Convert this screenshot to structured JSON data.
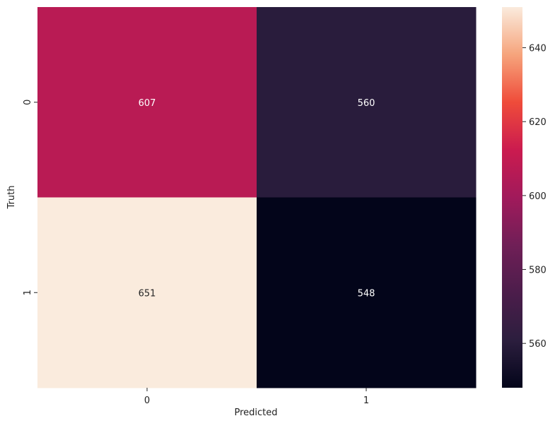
{
  "chart_data": {
    "type": "heatmap",
    "title": "",
    "xlabel": "Predicted",
    "ylabel": "Truth",
    "x_categories": [
      "0",
      "1"
    ],
    "y_categories": [
      "0",
      "1"
    ],
    "values": [
      [
        607,
        560
      ],
      [
        651,
        548
      ]
    ],
    "colorbar": {
      "min": 548,
      "max": 651,
      "ticks": [
        560,
        580,
        600,
        620,
        640
      ],
      "colormap": "rocket"
    },
    "grid": false,
    "legend": "colorbar-right"
  }
}
